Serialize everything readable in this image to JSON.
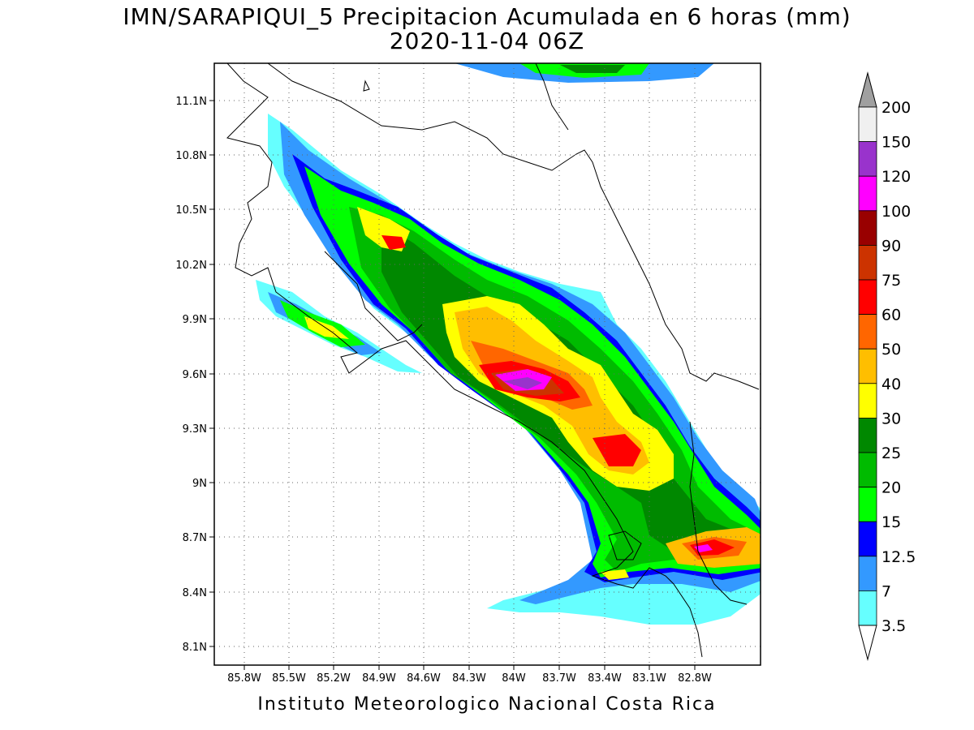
{
  "title": {
    "line1": "IMN/SARAPIQUI_5 Precipitacion Acumulada en 6 horas (mm)",
    "line2": "2020-11-04 06Z"
  },
  "footer": "Instituto Meteorologico Nacional Costa Rica",
  "axes": {
    "lat_labels": [
      "11.1N",
      "10.8N",
      "10.5N",
      "10.2N",
      "9.9N",
      "9.6N",
      "9.3N",
      "9N",
      "8.7N",
      "8.4N",
      "8.1N"
    ],
    "lon_labels": [
      "85.8W",
      "85.5W",
      "85.2W",
      "84.9W",
      "84.6W",
      "84.3W",
      "84W",
      "83.7W",
      "83.4W",
      "83.1W",
      "82.8W"
    ],
    "grid": true
  },
  "colorbar": {
    "labels": [
      "200",
      "150",
      "120",
      "100",
      "90",
      "75",
      "60",
      "50",
      "40",
      "30",
      "25",
      "20",
      "15",
      "12.5",
      "7",
      "3.5"
    ],
    "colors": [
      "#a0a0a0",
      "#f0f0f0",
      "#9933cc",
      "#ff00ff",
      "#990000",
      "#cc3300",
      "#ff0000",
      "#ff6600",
      "#ffbe00",
      "#ffff00",
      "#008800",
      "#00bb00",
      "#00ff00",
      "#0000ff",
      "#3399ff",
      "#66ffff"
    ]
  }
}
